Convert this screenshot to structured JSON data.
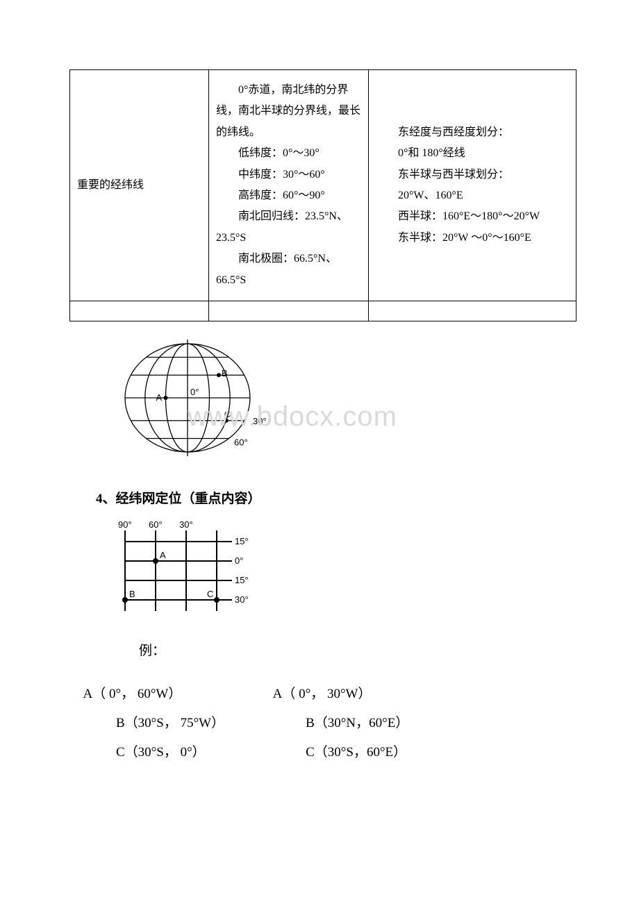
{
  "table": {
    "row_label": "重要的经纬线",
    "col2_lines": [
      "0°赤道，南北纬的分界线，南北半球的分界线，最长的纬线。",
      "低纬度：0°～30°",
      "中纬度：30°～60°",
      "高纬度：60°～90°",
      "南北回归线：23.5°N、23.5°S",
      "南北极圈：66.5°N、66.5°S"
    ],
    "col3_lines": [
      "东经度与西经度划分：",
      "0°和 180°经线",
      "东半球与西半球划分：",
      "20°W、160°E",
      "西半球：160°E～180°～20°W",
      "东半球：20°W ～0°～160°E"
    ]
  },
  "globe": {
    "labels": {
      "A": "A",
      "B": "B",
      "C": "C",
      "zero": "0°",
      "thirty": "30°",
      "sixty": "60°"
    },
    "colors": {
      "stroke": "#000000",
      "fill": "none",
      "bg": "#ffffff"
    },
    "stroke_width": 1.3,
    "font_size": 13
  },
  "watermark": "www.bdocx.com",
  "section_heading": "4、经纬网定位（重点内容）",
  "grid": {
    "x_labels": [
      "90°",
      "60°",
      "30°"
    ],
    "y_labels": [
      "15°",
      "0°",
      "15°",
      "30°"
    ],
    "point_labels": {
      "A": "A",
      "B": "B",
      "C": "C"
    },
    "colors": {
      "stroke": "#000000",
      "bg": "#ffffff"
    },
    "stroke_width": 2,
    "font_size": 13
  },
  "example_label": "例：",
  "answers": {
    "left": [
      "A（ 0°， 60°W）",
      "B（30°S， 75°W）",
      "C（30°S， 0°）"
    ],
    "right": [
      "A（ 0°， 30°W）",
      "B（30°N，60°E）",
      "C（30°S，60°E）"
    ]
  }
}
